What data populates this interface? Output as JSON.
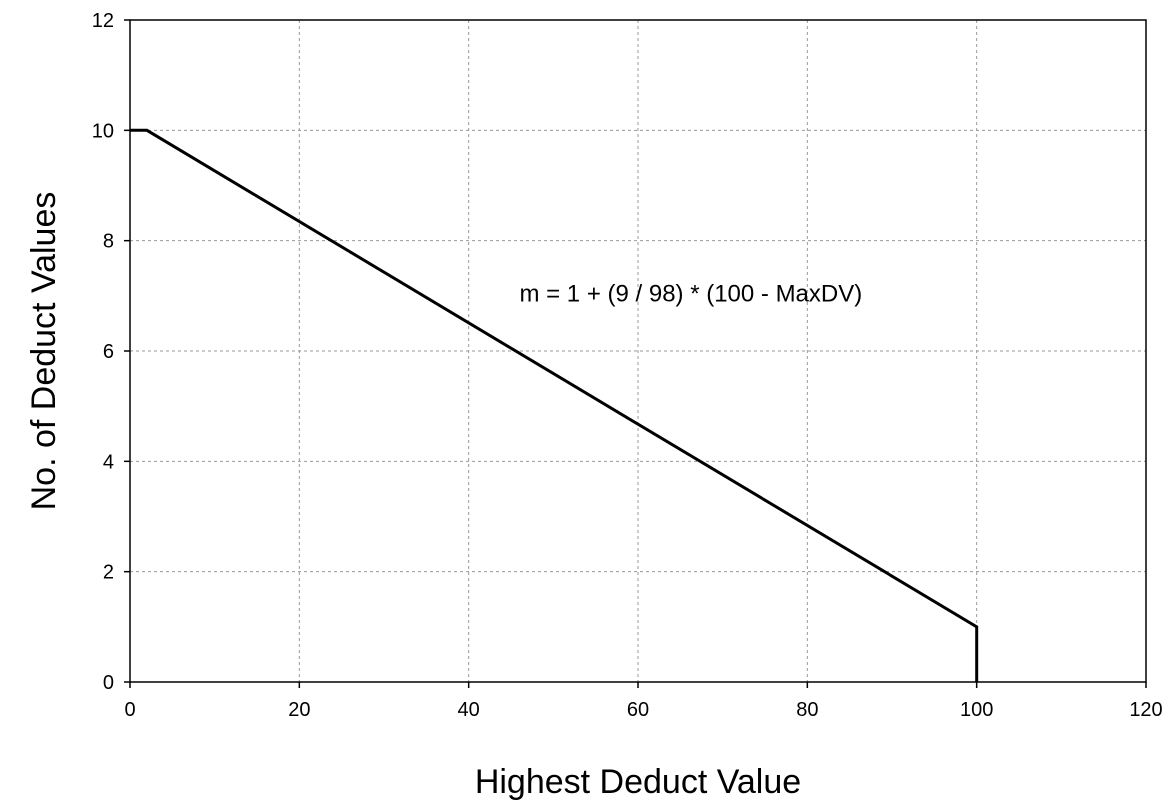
{
  "chart_data": {
    "type": "line",
    "title": "",
    "xlabel": "Highest Deduct Value",
    "ylabel": "No. of Deduct Values",
    "xlim": [
      0,
      120
    ],
    "ylim": [
      0,
      12
    ],
    "xticks": [
      0,
      20,
      40,
      60,
      80,
      100,
      120
    ],
    "yticks": [
      0,
      2,
      4,
      6,
      8,
      10,
      12
    ],
    "xtick_labels": [
      "0",
      "20",
      "40",
      "60",
      "80",
      "100",
      "120"
    ],
    "ytick_labels": [
      "0",
      "2",
      "4",
      "6",
      "8",
      "10",
      "12"
    ],
    "grid": true,
    "legend": "none",
    "series": [
      {
        "color": "#000000",
        "points": [
          {
            "x": 0,
            "y": 10
          },
          {
            "x": 2,
            "y": 10
          },
          {
            "x": 100,
            "y": 1
          },
          {
            "x": 100,
            "y": 0
          }
        ]
      }
    ],
    "annotations": [
      {
        "text": "m = 1 + (9 / 98) * (100 - MaxDV)",
        "x": 46,
        "y": 6.9
      }
    ]
  }
}
